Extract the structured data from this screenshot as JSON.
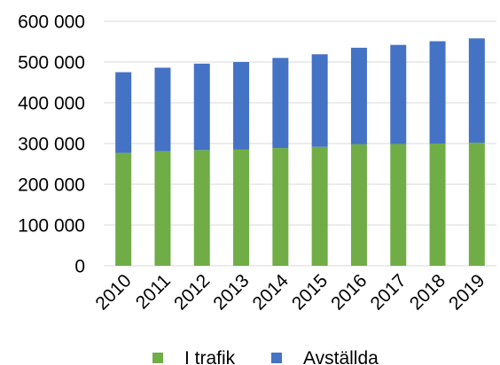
{
  "chart_data": {
    "type": "bar",
    "stacked": true,
    "title": "",
    "xlabel": "",
    "ylabel": "",
    "categories": [
      "2010",
      "2011",
      "2012",
      "2013",
      "2014",
      "2015",
      "2016",
      "2017",
      "2018",
      "2019"
    ],
    "series": [
      {
        "name": "I trafik",
        "color": "#70ad47",
        "values": [
          277000,
          281000,
          284000,
          285000,
          289000,
          292000,
          298000,
          299000,
          300000,
          302000
        ]
      },
      {
        "name": "Avställda",
        "color": "#4472c4",
        "values": [
          198000,
          205000,
          212000,
          215000,
          221000,
          227000,
          237000,
          243000,
          251000,
          256000
        ]
      }
    ],
    "ylim": [
      0,
      600000
    ],
    "yticks": [
      0,
      100000,
      200000,
      300000,
      400000,
      500000,
      600000
    ],
    "ytick_labels": [
      "0",
      "100 000",
      "200 000",
      "300 000",
      "400 000",
      "500 000",
      "600 000"
    ],
    "grid": true,
    "legend_position": "bottom"
  }
}
